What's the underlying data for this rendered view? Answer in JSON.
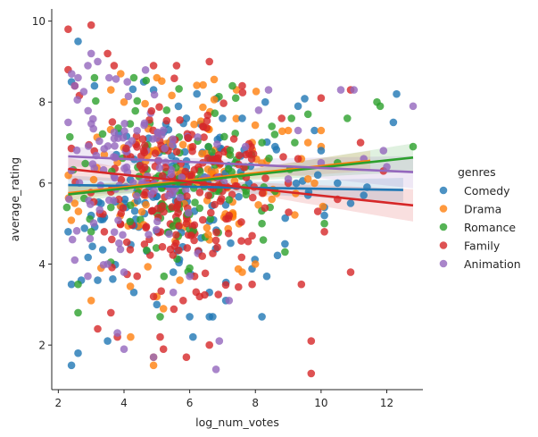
{
  "chart_data": {
    "type": "scatter",
    "title": "",
    "xlabel": "log_num_votes",
    "ylabel": "average_rating",
    "xlim": [
      1.8,
      13.1
    ],
    "ylim": [
      0.9,
      10.3
    ],
    "xticks": [
      2,
      4,
      6,
      8,
      10,
      12
    ],
    "yticks": [
      2,
      4,
      6,
      8,
      10
    ],
    "grid": false,
    "legend_title": "genres",
    "legend_position": "right",
    "series": [
      {
        "name": "Comedy",
        "color": "#1f77b4",
        "regression": {
          "x": [
            2.3,
            12.5
          ],
          "y": [
            5.95,
            5.83
          ],
          "band": [
            [
              0.3,
              0.3
            ],
            [
              5.0,
              0.15
            ],
            [
              7.0,
              0.12
            ],
            [
              12.5,
              0.3
            ]
          ]
        },
        "cluster": {
          "n": 120,
          "x": [
            5.8,
            1.6
          ],
          "y": [
            5.9,
            1.1
          ],
          "seed": 11
        },
        "points": [
          [
            2.4,
            1.5
          ],
          [
            2.6,
            1.8
          ],
          [
            2.6,
            9.5
          ],
          [
            2.3,
            4.8
          ],
          [
            2.4,
            3.5
          ],
          [
            2.7,
            3.6
          ],
          [
            2.4,
            8.5
          ],
          [
            3.0,
            5.2
          ],
          [
            3.2,
            3.6
          ],
          [
            3.5,
            2.1
          ],
          [
            3.3,
            5.1
          ],
          [
            4.4,
            5.8
          ],
          [
            4.3,
            3.3
          ],
          [
            5.0,
            3.0
          ],
          [
            5.5,
            3.8
          ],
          [
            6.0,
            2.7
          ],
          [
            6.1,
            2.2
          ],
          [
            6.6,
            2.7
          ],
          [
            6.7,
            2.7
          ],
          [
            6.6,
            3.3
          ],
          [
            7.1,
            3.1
          ],
          [
            7.0,
            7.6
          ],
          [
            8.2,
            2.7
          ],
          [
            8.6,
            6.9
          ],
          [
            8.9,
            4.5
          ],
          [
            9.3,
            7.9
          ],
          [
            9.6,
            5.7
          ],
          [
            9.8,
            7.3
          ],
          [
            10.0,
            6.8
          ],
          [
            10.1,
            5.2
          ],
          [
            10.1,
            5.4
          ],
          [
            10.9,
            5.5
          ],
          [
            11.3,
            5.7
          ],
          [
            12.2,
            7.5
          ],
          [
            12.3,
            8.2
          ],
          [
            10.5,
            6.0
          ],
          [
            9.9,
            6.2
          ],
          [
            11.4,
            5.9
          ],
          [
            5.9,
            7.6
          ],
          [
            7.6,
            7.6
          ],
          [
            7.8,
            6.0
          ],
          [
            4.6,
            8.5
          ],
          [
            4.9,
            8.3
          ],
          [
            3.1,
            8.4
          ],
          [
            8.3,
            8.0
          ]
        ]
      },
      {
        "name": "Drama",
        "color": "#ff7f0e",
        "regression": {
          "x": [
            2.3,
            11.5
          ],
          "y": [
            5.75,
            6.55
          ],
          "band": [
            [
              0.2,
              0.25
            ],
            [
              5.0,
              0.1
            ],
            [
              7.0,
              0.1
            ],
            [
              11.5,
              0.25
            ]
          ]
        },
        "cluster": {
          "n": 110,
          "x": [
            5.9,
            1.6
          ],
          "y": [
            6.0,
            1.0
          ],
          "seed": 23
        },
        "points": [
          [
            3.6,
            8.3
          ],
          [
            3.9,
            8.7
          ],
          [
            4.0,
            8.0
          ],
          [
            3.4,
            6.7
          ],
          [
            4.2,
            2.2
          ],
          [
            4.9,
            1.5
          ],
          [
            4.9,
            1.7
          ],
          [
            5.0,
            8.6
          ],
          [
            5.2,
            2.9
          ],
          [
            5.7,
            3.6
          ],
          [
            5.0,
            3.2
          ],
          [
            5.4,
            6.0
          ],
          [
            5.8,
            4.9
          ],
          [
            6.6,
            4.6
          ],
          [
            7.6,
            3.8
          ],
          [
            8.0,
            4.0
          ],
          [
            7.9,
            7.0
          ],
          [
            9.0,
            7.3
          ],
          [
            9.4,
            6.6
          ],
          [
            9.6,
            7.0
          ],
          [
            10.0,
            6.9
          ],
          [
            9.6,
            6.1
          ],
          [
            9.8,
            6.0
          ],
          [
            10.0,
            7.3
          ],
          [
            3.0,
            3.1
          ],
          [
            3.3,
            3.9
          ],
          [
            2.5,
            5.5
          ],
          [
            7.3,
            5.2
          ],
          [
            8.5,
            5.6
          ]
        ]
      },
      {
        "name": "Romance",
        "color": "#2ca02c",
        "regression": {
          "x": [
            2.3,
            12.8
          ],
          "y": [
            5.72,
            6.63
          ],
          "band": [
            [
              0.25,
              0.35
            ],
            [
              5.0,
              0.1
            ],
            [
              7.0,
              0.1
            ],
            [
              12.8,
              0.35
            ]
          ]
        },
        "cluster": {
          "n": 110,
          "x": [
            6.0,
            1.5
          ],
          "y": [
            5.9,
            1.0
          ],
          "seed": 37
        },
        "points": [
          [
            2.6,
            2.8
          ],
          [
            2.6,
            3.5
          ],
          [
            3.0,
            4.8
          ],
          [
            3.1,
            8.6
          ],
          [
            3.6,
            5.4
          ],
          [
            4.3,
            8.6
          ],
          [
            4.5,
            5.1
          ],
          [
            5.3,
            7.8
          ],
          [
            7.4,
            8.1
          ],
          [
            7.3,
            8.4
          ],
          [
            8.2,
            7.0
          ],
          [
            8.5,
            7.4
          ],
          [
            8.6,
            5.8
          ],
          [
            8.9,
            4.3
          ],
          [
            9.1,
            7.6
          ],
          [
            9.6,
            7.7
          ],
          [
            10.1,
            5.0
          ],
          [
            10.8,
            7.6
          ],
          [
            11.7,
            8.0
          ],
          [
            11.8,
            7.9
          ],
          [
            12.8,
            6.9
          ],
          [
            10.5,
            6.5
          ],
          [
            9.2,
            7.0
          ],
          [
            7.7,
            6.4
          ],
          [
            8.2,
            5.0
          ],
          [
            6.0,
            3.9
          ],
          [
            5.1,
            2.7
          ]
        ]
      },
      {
        "name": "Family",
        "color": "#d62728",
        "regression": {
          "x": [
            2.3,
            12.8
          ],
          "y": [
            6.35,
            5.45
          ],
          "band": [
            [
              0.25,
              0.4
            ],
            [
              5.0,
              0.1
            ],
            [
              7.0,
              0.1
            ],
            [
              12.8,
              0.4
            ]
          ]
        },
        "cluster": {
          "n": 200,
          "x": [
            5.6,
            1.4
          ],
          "y": [
            5.9,
            1.2
          ],
          "seed": 53
        },
        "points": [
          [
            2.3,
            9.8
          ],
          [
            3.0,
            9.9
          ],
          [
            2.3,
            8.8
          ],
          [
            2.5,
            8.4
          ],
          [
            3.2,
            2.4
          ],
          [
            3.6,
            2.8
          ],
          [
            3.8,
            2.2
          ],
          [
            4.9,
            3.2
          ],
          [
            5.1,
            2.2
          ],
          [
            5.2,
            1.9
          ],
          [
            5.9,
            1.7
          ],
          [
            6.6,
            2.0
          ],
          [
            5.8,
            3.1
          ],
          [
            6.3,
            3.2
          ],
          [
            6.1,
            4.8
          ],
          [
            4.9,
            8.9
          ],
          [
            5.6,
            8.9
          ],
          [
            6.6,
            9.0
          ],
          [
            7.6,
            8.4
          ],
          [
            8.8,
            7.6
          ],
          [
            9.7,
            2.1
          ],
          [
            9.7,
            1.3
          ],
          [
            9.4,
            3.5
          ],
          [
            10.0,
            8.1
          ],
          [
            10.9,
            8.3
          ],
          [
            11.2,
            7.0
          ],
          [
            11.9,
            6.3
          ],
          [
            10.9,
            3.8
          ],
          [
            10.1,
            4.8
          ],
          [
            9.3,
            6.6
          ],
          [
            7.9,
            3.5
          ],
          [
            7.9,
            4.7
          ],
          [
            7.2,
            5.2
          ],
          [
            6.8,
            6.6
          ],
          [
            6.4,
            7.4
          ],
          [
            3.7,
            8.9
          ],
          [
            3.5,
            9.2
          ],
          [
            3.4,
            4.8
          ],
          [
            4.4,
            3.7
          ],
          [
            5.5,
            6.1
          ],
          [
            6.4,
            6.5
          ],
          [
            7.0,
            5.8
          ],
          [
            10.5,
            5.6
          ],
          [
            9.9,
            5.3
          ],
          [
            9.0,
            6.0
          ]
        ]
      },
      {
        "name": "Animation",
        "color": "#9467bd",
        "regression": {
          "x": [
            2.3,
            12.8
          ],
          "y": [
            6.66,
            6.27
          ],
          "band": [
            [
              0.2,
              0.4
            ],
            [
              5.0,
              0.1
            ],
            [
              7.0,
              0.1
            ],
            [
              12.8,
              0.4
            ]
          ]
        },
        "cluster": {
          "n": 120,
          "x": [
            4.2,
            1.5
          ],
          "y": [
            6.5,
            1.0
          ],
          "seed": 71
        },
        "points": [
          [
            2.6,
            8.6
          ],
          [
            2.5,
            8.4
          ],
          [
            2.9,
            8.9
          ],
          [
            3.2,
            9.0
          ],
          [
            2.5,
            4.1
          ],
          [
            2.9,
            3.7
          ],
          [
            3.5,
            4.0
          ],
          [
            3.8,
            2.3
          ],
          [
            4.0,
            1.9
          ],
          [
            4.0,
            3.8
          ],
          [
            4.9,
            1.7
          ],
          [
            5.5,
            3.3
          ],
          [
            6.8,
            1.4
          ],
          [
            6.9,
            2.1
          ],
          [
            7.2,
            3.1
          ],
          [
            6.0,
            3.7
          ],
          [
            8.4,
            8.3
          ],
          [
            8.1,
            7.8
          ],
          [
            9.3,
            7.3
          ],
          [
            10.6,
            8.3
          ],
          [
            11.0,
            8.3
          ],
          [
            11.3,
            6.6
          ],
          [
            11.9,
            6.8
          ],
          [
            12.8,
            7.9
          ],
          [
            12.0,
            6.4
          ],
          [
            10.0,
            6.5
          ],
          [
            9.0,
            6.1
          ],
          [
            7.7,
            6.9
          ],
          [
            3.0,
            9.2
          ],
          [
            4.1,
            8.5
          ],
          [
            2.3,
            7.5
          ],
          [
            3.7,
            7.1
          ]
        ]
      }
    ]
  }
}
